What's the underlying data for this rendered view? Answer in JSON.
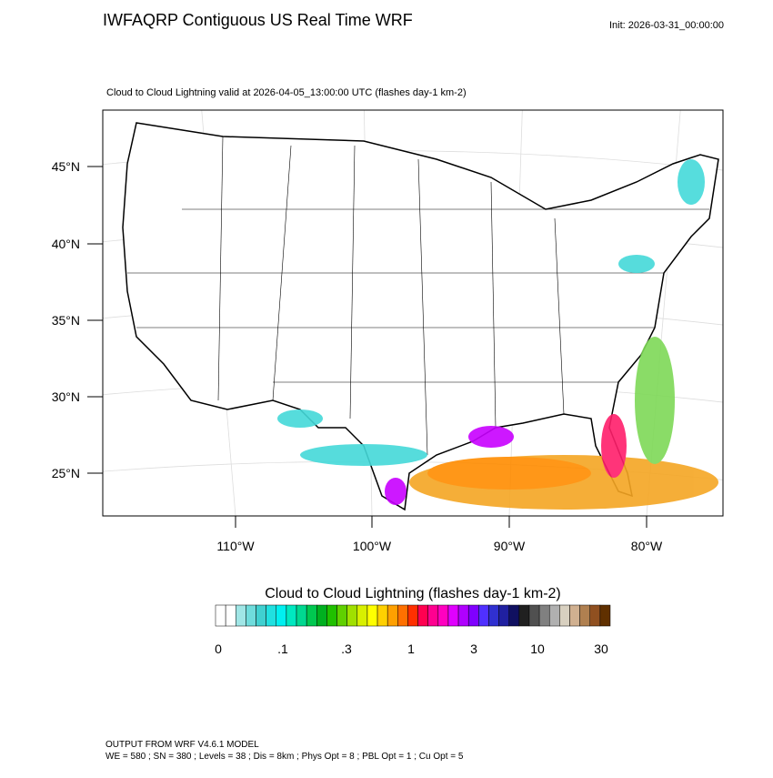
{
  "header": {
    "title": "IWFAQRP Contiguous US Real Time WRF",
    "init": "Init: 2026-03-31_00:00:00",
    "subtitle": "Cloud to Cloud Lightning valid at 2026-04-05_13:00:00 UTC   (flashes day-1 km-2)"
  },
  "map": {
    "lat_labels": [
      "45°N",
      "40°N",
      "35°N",
      "30°N",
      "25°N"
    ],
    "lon_labels": [
      "110°W",
      "100°W",
      "90°W",
      "80°W"
    ]
  },
  "colorbar": {
    "title": "Cloud to Cloud Lightning  (flashes day-1 km-2)",
    "labels": [
      "0",
      ".1",
      ".3",
      "1",
      "3",
      "10",
      "30"
    ]
  },
  "footer": {
    "line1": "OUTPUT FROM WRF V4.6.1 MODEL",
    "line2": "WE = 580 ; SN = 380 ; Levels = 38 ; Dis = 8km ; Phys Opt = 8 ; PBL Opt = 1 ; Cu Opt = 5"
  }
}
